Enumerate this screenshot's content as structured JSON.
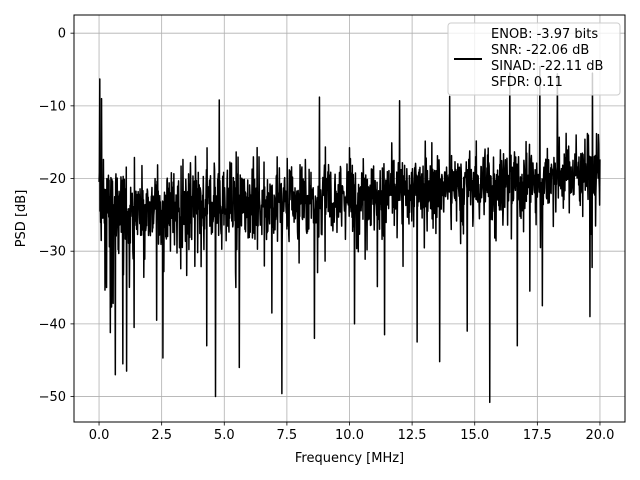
{
  "chart_data": {
    "type": "line",
    "title": "",
    "xlabel": "Frequency [MHz]",
    "ylabel": "PSD [dB]",
    "xlim": [
      -1.0,
      21.0
    ],
    "ylim": [
      -53.5,
      2.5
    ],
    "x_ticks": [
      0.0,
      2.5,
      5.0,
      7.5,
      10.0,
      12.5,
      15.0,
      17.5,
      20.0
    ],
    "x_tick_labels": [
      "0.0",
      "2.5",
      "5.0",
      "7.5",
      "10.0",
      "12.5",
      "15.0",
      "17.5",
      "20.0"
    ],
    "y_ticks": [
      0,
      -10,
      -20,
      -30,
      -40,
      -50
    ],
    "y_tick_labels": [
      "0",
      "−10",
      "−20",
      "−30",
      "−40",
      "−50"
    ],
    "grid": true,
    "legend": {
      "position": "upper-right",
      "lines": [
        "ENOB: -3.97 bits",
        "SNR: -22.06 dB",
        "SINAD: -22.11 dB",
        "SFDR: 0.11"
      ]
    },
    "series": [
      {
        "color": "#000000",
        "noise_floor_envelope": {
          "x": [
            0,
            2,
            4,
            6,
            8,
            10,
            12,
            14,
            16,
            18,
            20
          ],
          "median_db": [
            -24,
            -24,
            -23.5,
            -23,
            -22.5,
            -22,
            -21.5,
            -21,
            -20.5,
            -19.5,
            -18.5
          ],
          "upper_db": [
            -12,
            -13,
            -11.5,
            -11,
            -11.5,
            -11,
            -11,
            -10.5,
            -10,
            -9,
            -9
          ],
          "lower_db": [
            -36,
            -35,
            -35,
            -34,
            -34,
            -34,
            -33,
            -33,
            -32,
            -31,
            -30
          ]
        },
        "peaks": [
          {
            "x": 0.03,
            "y": -6.3
          },
          {
            "x": 0.1,
            "y": -9.0
          },
          {
            "x": 4.8,
            "y": -9.2
          },
          {
            "x": 8.8,
            "y": -8.8
          },
          {
            "x": 12.0,
            "y": -9.3
          },
          {
            "x": 14.0,
            "y": -8.7
          },
          {
            "x": 16.4,
            "y": -5.5
          },
          {
            "x": 17.6,
            "y": -4.6
          },
          {
            "x": 18.3,
            "y": -5.6
          },
          {
            "x": 19.7,
            "y": -5.5
          }
        ],
        "dips": [
          {
            "x": 0.3,
            "y": -35.0
          },
          {
            "x": 0.45,
            "y": -41.2
          },
          {
            "x": 0.65,
            "y": -47.0
          },
          {
            "x": 0.95,
            "y": -45.5
          },
          {
            "x": 1.1,
            "y": -46.5
          },
          {
            "x": 1.4,
            "y": -40.5
          },
          {
            "x": 2.3,
            "y": -39.5
          },
          {
            "x": 2.55,
            "y": -44.7
          },
          {
            "x": 4.3,
            "y": -43.0
          },
          {
            "x": 4.65,
            "y": -50.0
          },
          {
            "x": 5.6,
            "y": -46.0
          },
          {
            "x": 6.9,
            "y": -38.5
          },
          {
            "x": 7.3,
            "y": -49.6
          },
          {
            "x": 8.6,
            "y": -42.0
          },
          {
            "x": 10.2,
            "y": -40.0
          },
          {
            "x": 11.4,
            "y": -41.5
          },
          {
            "x": 12.7,
            "y": -42.5
          },
          {
            "x": 13.6,
            "y": -45.2
          },
          {
            "x": 14.7,
            "y": -41.0
          },
          {
            "x": 15.6,
            "y": -50.8
          },
          {
            "x": 16.7,
            "y": -43.0
          },
          {
            "x": 17.2,
            "y": -35.5
          },
          {
            "x": 17.7,
            "y": -37.5
          },
          {
            "x": 19.6,
            "y": -39.0
          }
        ]
      }
    ]
  }
}
